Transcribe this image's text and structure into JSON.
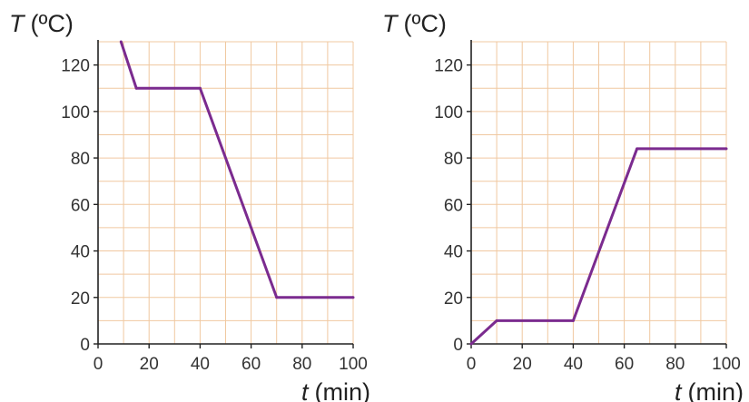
{
  "colors": {
    "grid": "#f0c8a0",
    "axis": "#222222",
    "line": "#7b2b8f",
    "background": "#ffffff"
  },
  "chart_data": [
    {
      "type": "line",
      "y_title_var": "T",
      "y_title_unit": "(ºC)",
      "x_title_var": "t",
      "x_title_unit": "(min)",
      "xlim": [
        0,
        100
      ],
      "ylim": [
        0,
        130
      ],
      "x_ticks": [
        0,
        20,
        40,
        60,
        80,
        100
      ],
      "y_ticks": [
        0,
        20,
        40,
        60,
        80,
        100,
        120
      ],
      "grid": true,
      "series": [
        {
          "x": [
            9,
            15,
            40,
            70,
            100
          ],
          "y": [
            130,
            110,
            110,
            20,
            20
          ]
        }
      ]
    },
    {
      "type": "line",
      "y_title_var": "T",
      "y_title_unit": "(ºC)",
      "x_title_var": "t",
      "x_title_unit": "(min)",
      "xlim": [
        0,
        100
      ],
      "ylim": [
        0,
        130
      ],
      "x_ticks": [
        0,
        20,
        40,
        60,
        80,
        100
      ],
      "y_ticks": [
        0,
        20,
        40,
        60,
        80,
        100,
        120
      ],
      "grid": true,
      "series": [
        {
          "x": [
            0,
            10,
            40,
            65,
            100
          ],
          "y": [
            0,
            10,
            10,
            84,
            84
          ]
        }
      ]
    }
  ]
}
